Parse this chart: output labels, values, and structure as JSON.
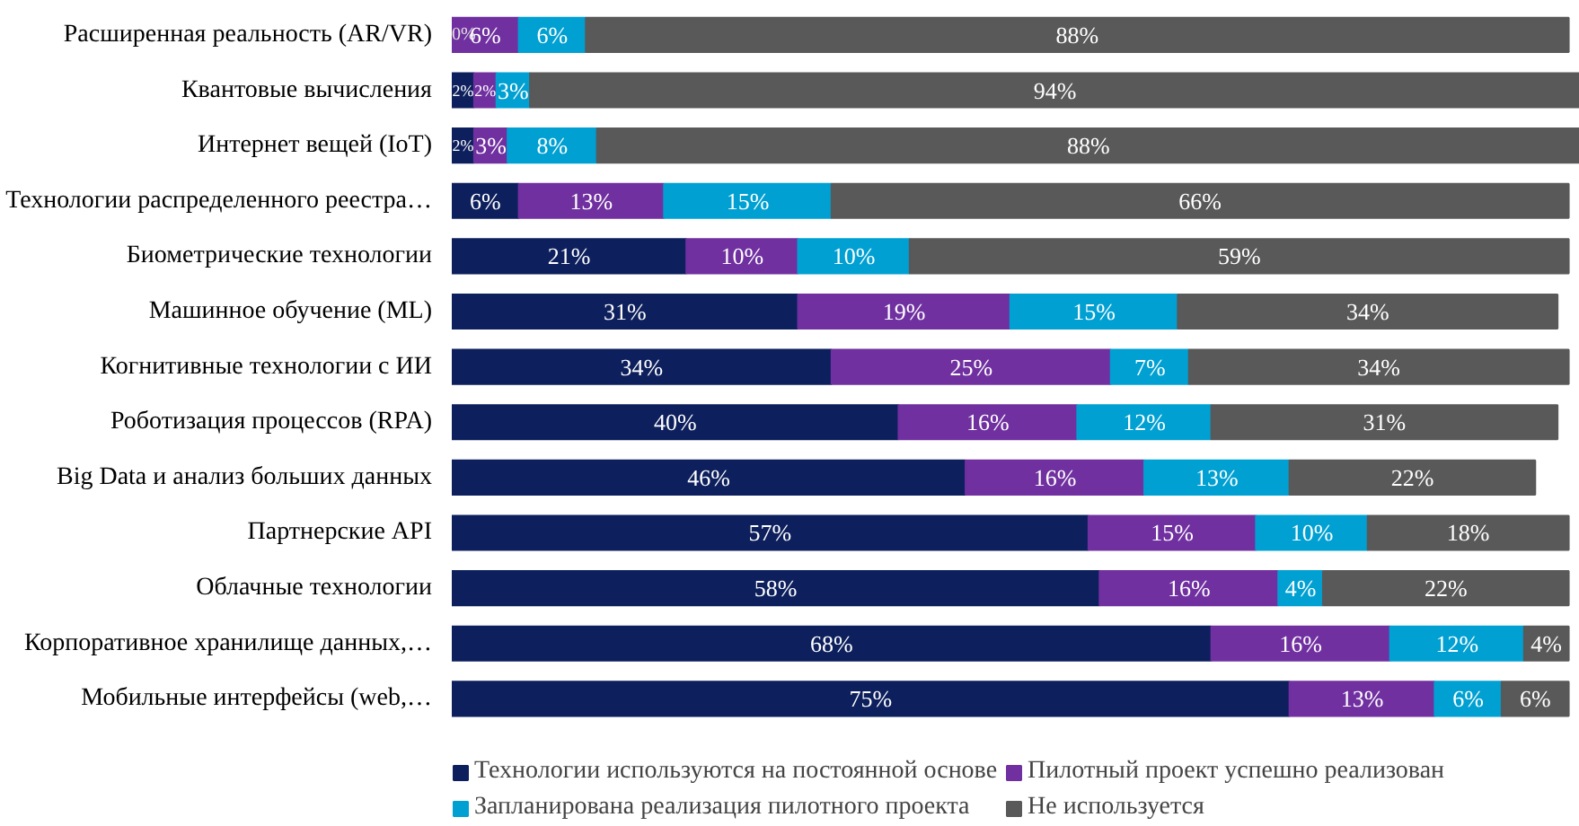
{
  "chart_data": {
    "type": "bar",
    "orientation": "horizontal",
    "stacked": true,
    "categories": [
      "Расширенная реальность (AR/VR)",
      "Квантовые вычисления",
      "Интернет вещей (IoT)",
      "Технологии распределенного реестра…",
      "Биометрические технологии",
      "Машинное обучение (ML)",
      "Когнитивные технологии с ИИ",
      "Роботизация процессов (RPA)",
      "Big Data и анализ больших данных",
      "Партнерские API",
      "Облачные технологии",
      "Корпоративное хранилище данных,…",
      "Мобильные интерфейсы (web,…"
    ],
    "series": [
      {
        "name": "Технологии используются на постоянной основе",
        "color": "#0d1f5c",
        "values": [
          0,
          2,
          2,
          6,
          21,
          31,
          34,
          40,
          46,
          57,
          58,
          68,
          75
        ],
        "value_labels": [
          "0%",
          "2%",
          "2%",
          "6%",
          "21%",
          "31%",
          "34%",
          "40%",
          "46%",
          "57%",
          "58%",
          "68%",
          "75%"
        ]
      },
      {
        "name": "Пилотный проект успешно реализован",
        "color": "#7030a0",
        "values": [
          6,
          2,
          3,
          13,
          10,
          19,
          25,
          16,
          16,
          15,
          16,
          16,
          13
        ],
        "value_labels": [
          "6%",
          "2%",
          "3%",
          "13%",
          "10%",
          "19%",
          "25%",
          "16%",
          "16%",
          "15%",
          "16%",
          "16%",
          "13%"
        ]
      },
      {
        "name": "Запланирована реализация пилотного проекта",
        "color": "#00a0d2",
        "values": [
          6,
          3,
          8,
          15,
          10,
          15,
          7,
          12,
          13,
          10,
          4,
          12,
          6
        ],
        "value_labels": [
          "6%",
          "3%",
          "8%",
          "15%",
          "10%",
          "15%",
          "7%",
          "12%",
          "13%",
          "10%",
          "4%",
          "12%",
          "6%"
        ]
      },
      {
        "name": "Не используется",
        "color": "#595959",
        "values": [
          88,
          94,
          88,
          66,
          59,
          34,
          34,
          31,
          22,
          18,
          22,
          4,
          6
        ],
        "value_labels": [
          "88%",
          "94%",
          "88%",
          "66%",
          "59%",
          "34%",
          "34%",
          "31%",
          "22%",
          "18%",
          "22%",
          "4%",
          "6%"
        ]
      }
    ],
    "tick_labels": "y",
    "legend": "bottom"
  }
}
